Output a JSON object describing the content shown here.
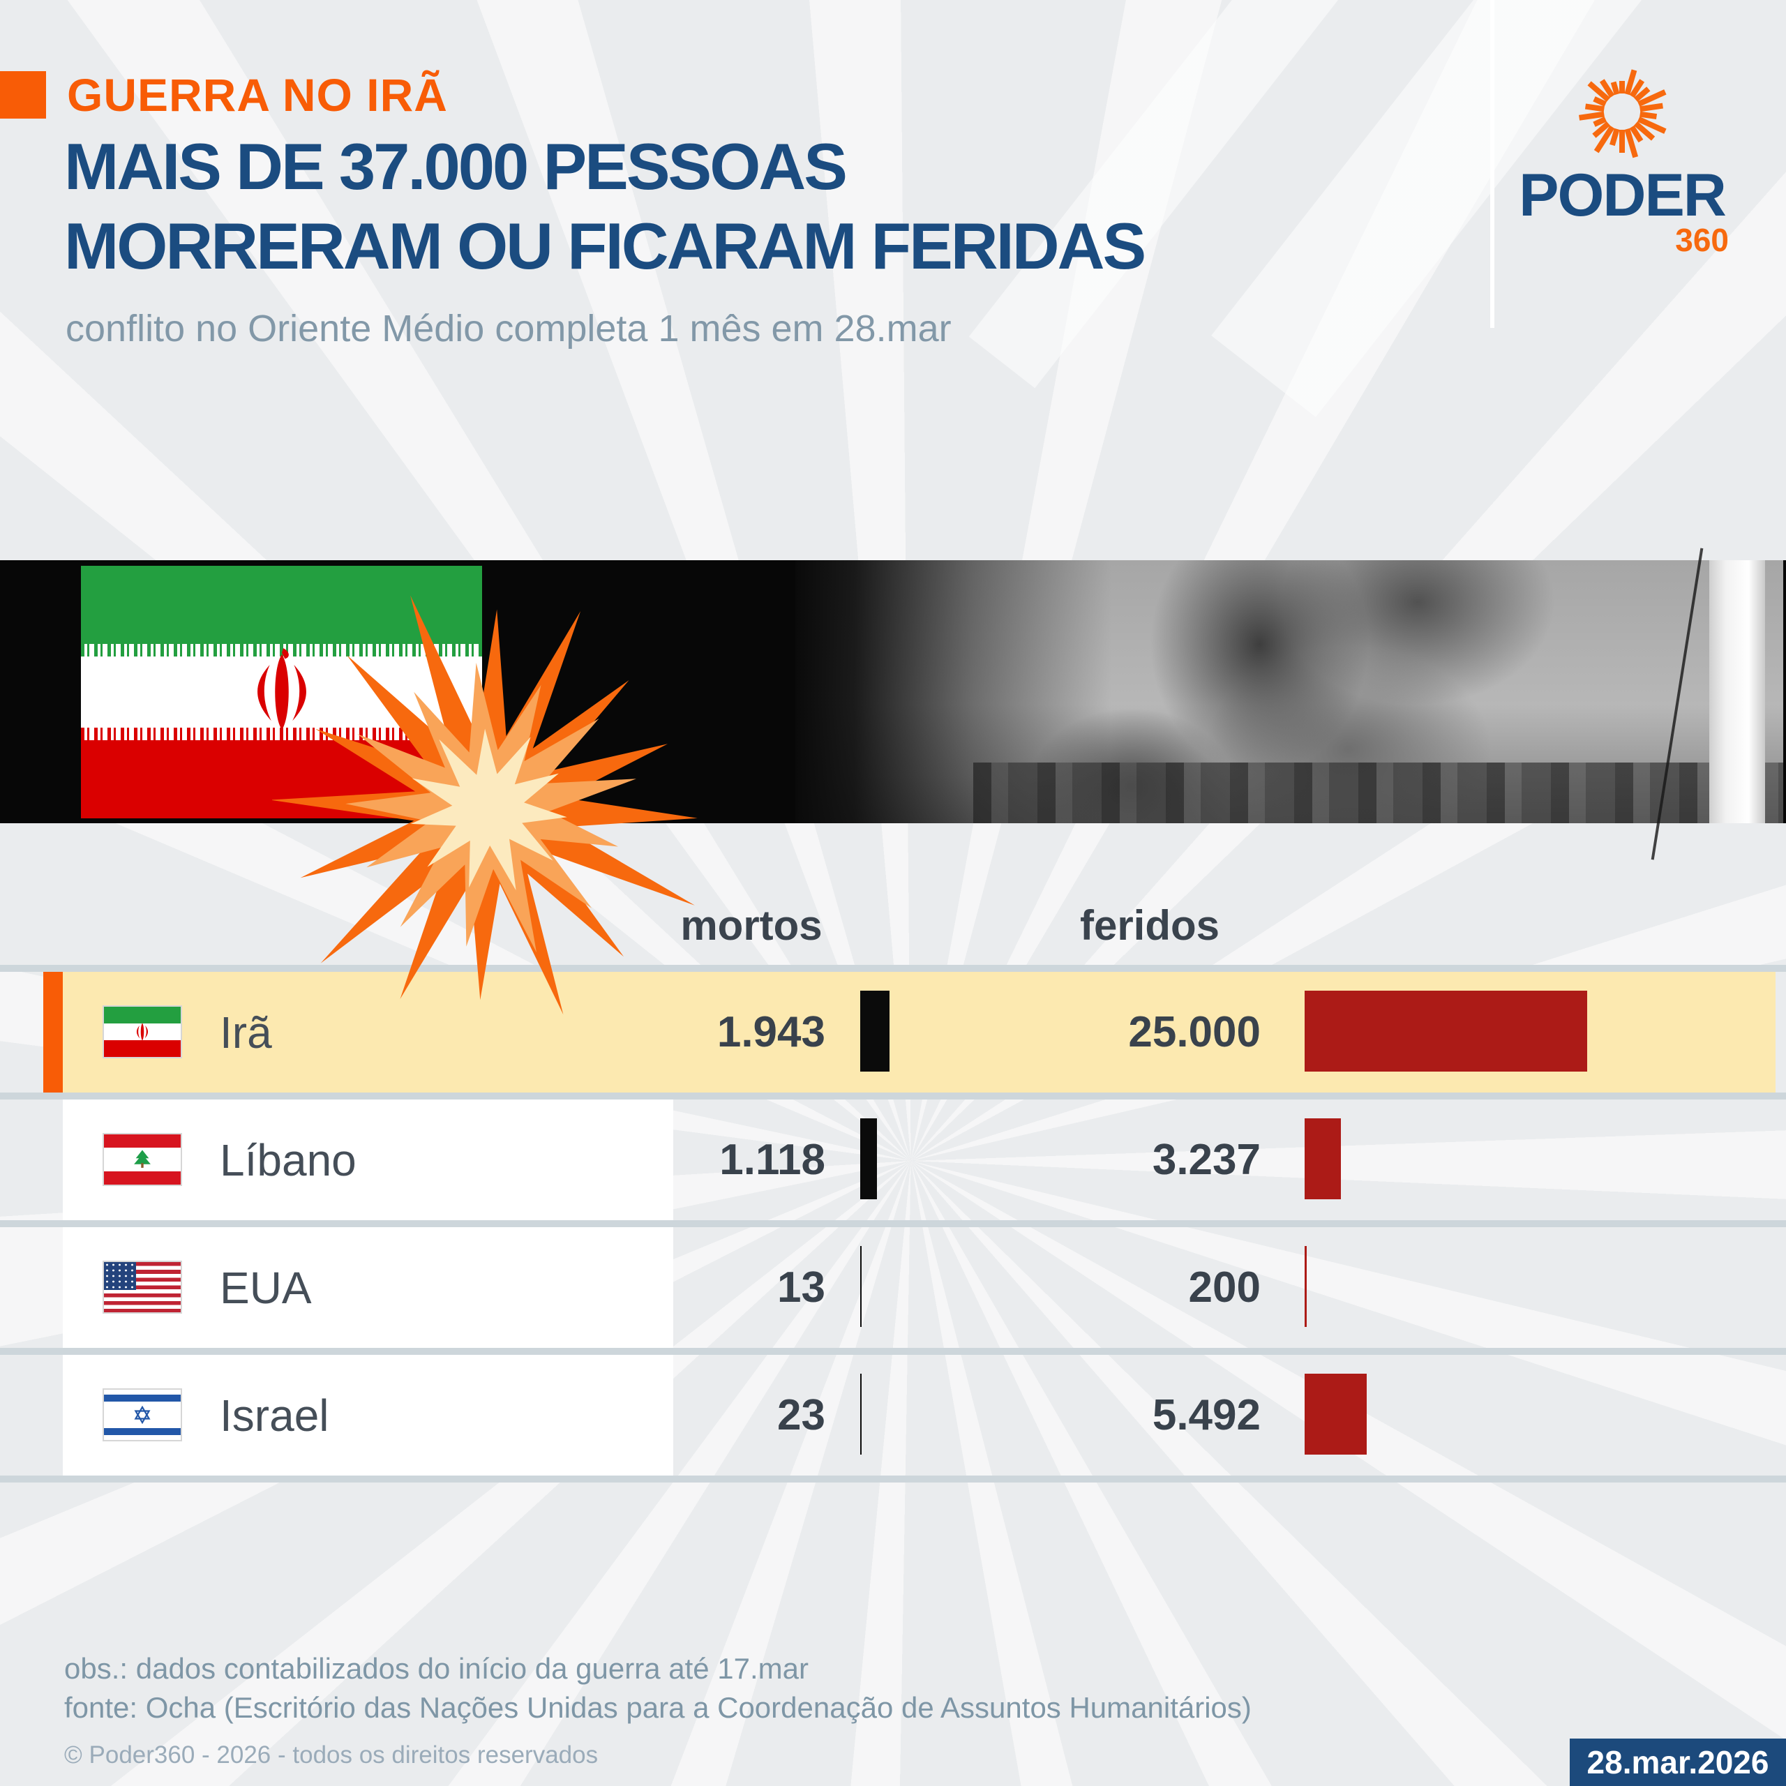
{
  "kicker": {
    "label": "GUERRA NO IRÃ"
  },
  "title": {
    "line1": "MAIS DE 37.000 PESSOAS",
    "line2": "MORRERAM OU FICARAM FERIDAS"
  },
  "subtitle": "conflito no Oriente Médio completa 1 mês em 28.mar",
  "logo": {
    "name": "PODER",
    "suffix": "360"
  },
  "table": {
    "headers": {
      "mortos": "mortos",
      "feridos": "feridos"
    },
    "rows": [
      {
        "country": "Irã",
        "flag": "iran",
        "mortos": "1.943",
        "mortos_value": 1943,
        "feridos": "25.000",
        "feridos_value": 25000,
        "highlighted": true
      },
      {
        "country": "Líbano",
        "flag": "lebanon",
        "mortos": "1.118",
        "mortos_value": 1118,
        "feridos": "3.237",
        "feridos_value": 3237,
        "highlighted": false
      },
      {
        "country": "EUA",
        "flag": "usa",
        "mortos": "13",
        "mortos_value": 13,
        "feridos": "200",
        "feridos_value": 200,
        "highlighted": false
      },
      {
        "country": "Israel",
        "flag": "israel",
        "mortos": "23",
        "mortos_value": 23,
        "feridos": "5.492",
        "feridos_value": 5492,
        "highlighted": false
      }
    ]
  },
  "chart_data": {
    "type": "bar",
    "title": "MAIS DE 37.000 PESSOAS MORRERAM OU FICARAM FERIDAS",
    "subtitle": "conflito no Oriente Médio completa 1 mês em 28.mar",
    "categories": [
      "Irã",
      "Líbano",
      "EUA",
      "Israel"
    ],
    "series": [
      {
        "name": "mortos",
        "values": [
          1943,
          1118,
          13,
          23
        ]
      },
      {
        "name": "feridos",
        "values": [
          25000,
          3237,
          200,
          5492
        ]
      }
    ],
    "highlighted_category": "Irã",
    "orientation": "horizontal",
    "note": "obs.: dados contabilizados do início da guerra até 17.mar",
    "source": "fonte: Ocha (Escritório das Nações Unidas para a Coordenação de Assuntos Humanitários)"
  },
  "notes": {
    "obs": "obs.: dados contabilizados do início da guerra até 17.mar",
    "fonte": "fonte: Ocha (Escritório das Nações Unidas para a Coordenação de Assuntos Humanitários)",
    "copyright": "© Poder360 - 2026 - todos os direitos reservados"
  },
  "date_badge": "28.mar.2026",
  "colors": {
    "accent_orange": "#F85C06",
    "logo_orange": "#F7690E",
    "navy": "#1B4C80",
    "badge_navy": "#1C4A7C",
    "highlight_yellow": "#FCE9B0",
    "bar_black": "#0B0B0B",
    "bar_red": "#AC1B17",
    "separator": "#CDD6DB",
    "text_dark": "#39424C",
    "text_gray": "#7E96A6",
    "burst_outer": "#F7690E",
    "burst_mid": "#F9A458",
    "burst_inner": "#FCEABF"
  }
}
